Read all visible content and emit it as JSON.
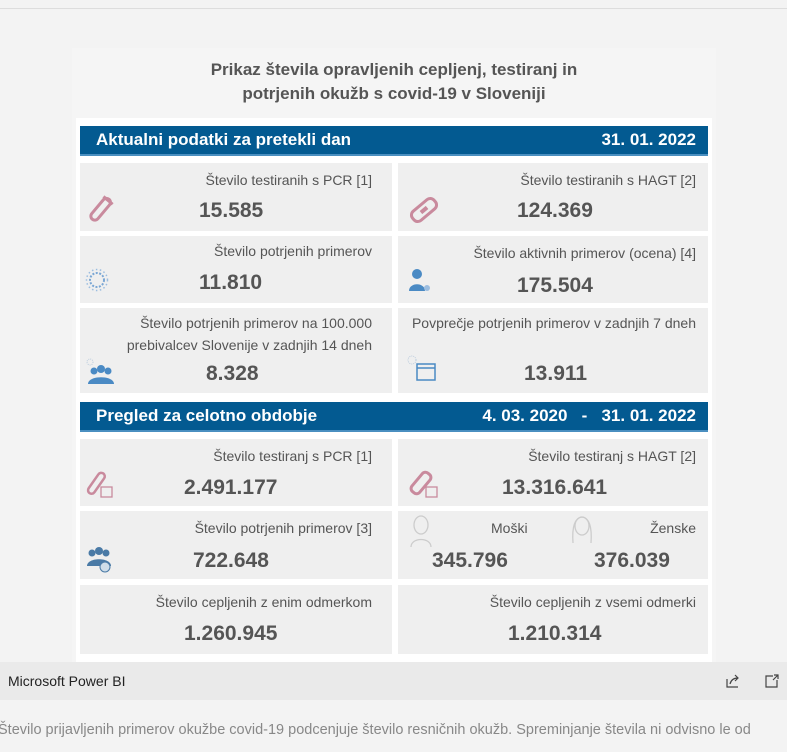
{
  "title": "Prikaz števila opravljenih cepljenj, testiranj in potrjenih okužb s covid-19 v Sloveniji",
  "title_line1": "Prikaz števila opravljenih cepljenj, testiranj in",
  "title_line2": "potrjenih okužb s covid-19 v Sloveniji",
  "colors": {
    "header": "#035a91",
    "card": "#efefef",
    "pink": "#c98a9d",
    "blue": "#4a8ac4"
  },
  "daily": {
    "header": "Aktualni podatki za pretekli dan",
    "date": "31. 01. 2022",
    "cards": [
      {
        "label": "Število testiranih s PCR [1]",
        "value": "15.585",
        "icon": "test-tube-icon"
      },
      {
        "label": "Število testiranih s HAGT [2]",
        "value": "124.369",
        "icon": "rapid-test-icon"
      },
      {
        "label": "Število potrjenih primerov",
        "value": "11.810",
        "icon": "virus-icon"
      },
      {
        "label": "Število aktivnih primerov (ocena) [4]",
        "value": "175.504",
        "icon": "person-icon"
      },
      {
        "label": "Število potrjenih primerov na 100.000 prebivalcev Slovenije v zadnjih 14 dneh",
        "value": "8.328",
        "icon": "group-icon"
      },
      {
        "label": "Povprečje potrjenih primerov v zadnjih 7 dneh",
        "value": "13.911",
        "icon": "calendar-icon"
      }
    ]
  },
  "total": {
    "header": "Pregled za celotno obdobje",
    "date_from": "4. 03. 2020",
    "sep": "-",
    "date_to": "31. 01. 2022",
    "cards": [
      {
        "label": "Število testiranj s PCR [1]",
        "value": "2.491.177",
        "icon": "test-tube-calendar-icon"
      },
      {
        "label": "Število testiranj s HAGT [2]",
        "value": "13.316.641",
        "icon": "rapid-test-calendar-icon"
      },
      {
        "label": "Število potrjenih primerov [3]",
        "value": "722.648",
        "icon": "group-plus-icon"
      },
      {
        "label": "Število cepljenih z enim odmerkom",
        "value": "1.260.945"
      },
      {
        "label": "Število cepljenih z vsemi odmerki",
        "value": "1.210.314"
      }
    ],
    "male": {
      "label": "Moški",
      "value": "345.796"
    },
    "female": {
      "label": "Ženske",
      "value": "376.039"
    }
  },
  "footer_bar": {
    "brand": "Microsoft Power BI",
    "share": "share-icon",
    "popout": "popout-icon"
  },
  "note": "Število prijavljenih primerov okužbe covid-19 podcenjuje število resničnih okužb. Spreminjanje števila ni odvisno le od"
}
